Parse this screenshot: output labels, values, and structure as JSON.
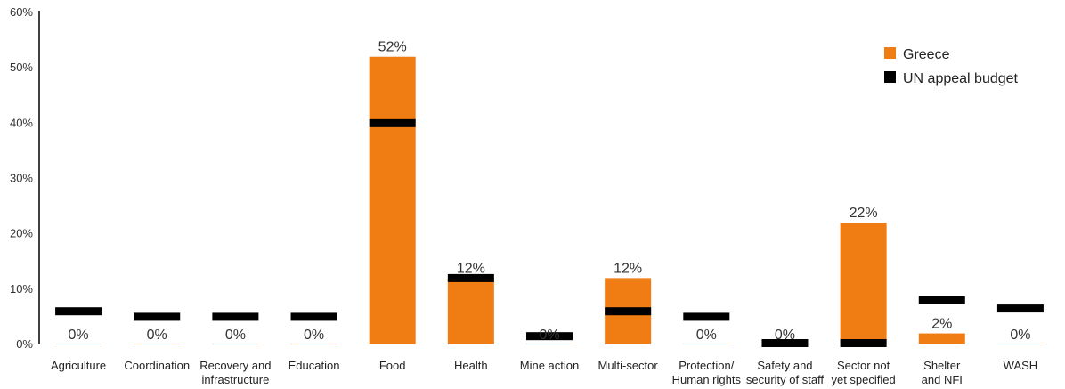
{
  "chart_data": {
    "type": "bar",
    "categories": [
      [
        "Agriculture"
      ],
      [
        "Coordination"
      ],
      [
        "Recovery and",
        "infrastructure"
      ],
      [
        "Education"
      ],
      [
        "Food"
      ],
      [
        "Health"
      ],
      [
        "Mine action"
      ],
      [
        "Multi-sector"
      ],
      [
        "Protection/",
        "Human rights"
      ],
      [
        "Safety and",
        "security of staff"
      ],
      [
        "Sector not",
        "yet specified"
      ],
      [
        "Shelter",
        "and NFI"
      ],
      [
        "WASH"
      ]
    ],
    "series": [
      {
        "name": "Greece",
        "kind": "bar",
        "color": "#f07c14",
        "values": [
          0,
          0,
          0,
          0,
          52,
          12,
          0,
          12,
          0,
          0,
          22,
          2,
          0
        ],
        "labels": [
          "0%",
          "0%",
          "0%",
          "0%",
          "52%",
          "12%",
          "0%",
          "12%",
          "0%",
          "0%",
          "22%",
          "2%",
          "0%"
        ]
      },
      {
        "name": "UN appeal budget",
        "kind": "marker",
        "color": "#000000",
        "values": [
          6,
          5,
          5,
          5,
          40,
          12,
          1.5,
          6,
          5,
          0,
          0,
          8,
          6.5
        ]
      }
    ],
    "yticks": [
      "60%",
      "50%",
      "40%",
      "30%",
      "20%",
      "10%",
      "0%"
    ],
    "ytick_values": [
      60,
      50,
      40,
      30,
      20,
      10,
      0
    ],
    "ylim": [
      0,
      60
    ],
    "grid": false,
    "legend_position": "top-right"
  }
}
